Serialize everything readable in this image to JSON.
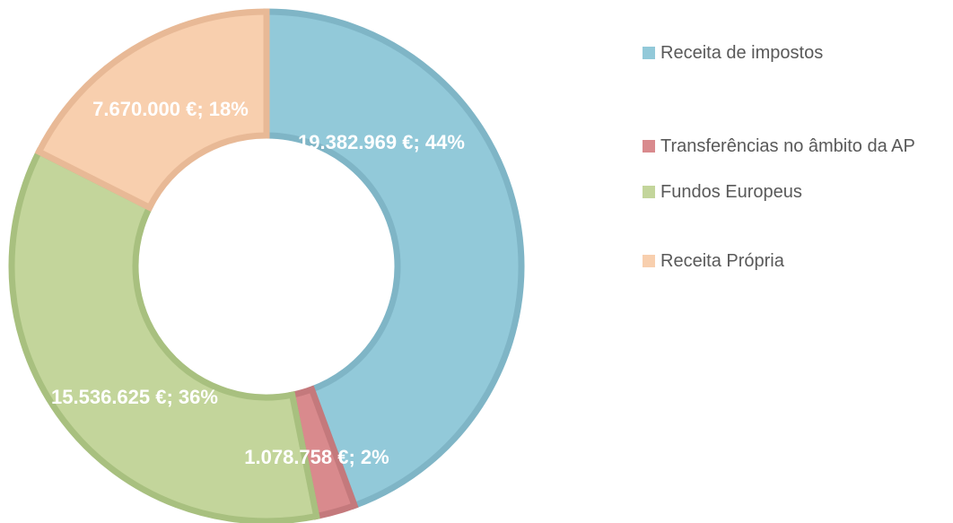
{
  "chart_data": {
    "type": "pie",
    "categories": [
      "Receita de impostos",
      "Transferências no âmbito da AP",
      "Fundos Europeus",
      "Receita Própria"
    ],
    "values": [
      19382969,
      1078758,
      15536625,
      7670000
    ],
    "value_labels": [
      "19.382.969 €; 44%",
      "1.078.758 €; 2%",
      "15.536.625 €; 36%",
      "7.670.000 €; 18%"
    ],
    "colors": [
      "#92c9d9",
      "#d98a8d",
      "#c3d59b",
      "#f8cfae"
    ],
    "stroke_colors": [
      "#7fb5c6",
      "#c4797c",
      "#a8c07f",
      "#e8b996"
    ],
    "legend": "right"
  }
}
